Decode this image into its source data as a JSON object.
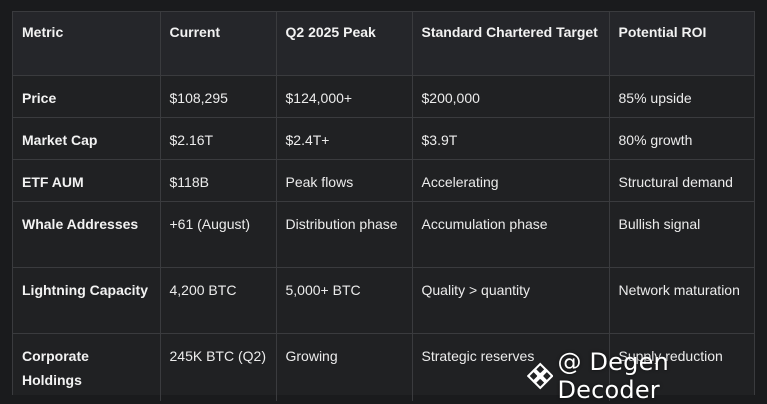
{
  "table": {
    "headers": [
      "Metric",
      "Current",
      "Q2 2025 Peak",
      "Standard Chartered Target",
      "Potential ROI"
    ],
    "rows": [
      [
        "Price",
        "$108,295",
        "$124,000+",
        "$200,000",
        "85% upside"
      ],
      [
        "Market Cap",
        "$2.16T",
        "$2.4T+",
        "$3.9T",
        "80% growth"
      ],
      [
        "ETF AUM",
        "$118B",
        "Peak flows",
        "Accelerating",
        "Structural demand"
      ],
      [
        "Whale Addresses",
        "+61 (August)",
        "Distribution phase",
        "Accumulation phase",
        "Bullish signal"
      ],
      [
        "Lightning Capacity",
        "4,200 BTC",
        "5,000+ BTC",
        "Quality > quantity",
        "Network maturation"
      ],
      [
        "Corporate Holdings",
        "245K BTC (Q2)",
        "Growing",
        "Strategic reserves",
        "Supply reduction"
      ]
    ]
  },
  "watermark": {
    "icon": "binance-diamond-icon",
    "text": "@ Degen Decoder"
  },
  "colors": {
    "background": "#1a1b1d",
    "table_bg": "#202123",
    "header_bg": "#25262a",
    "border": "#3a3b3e",
    "text": "#ececec"
  }
}
